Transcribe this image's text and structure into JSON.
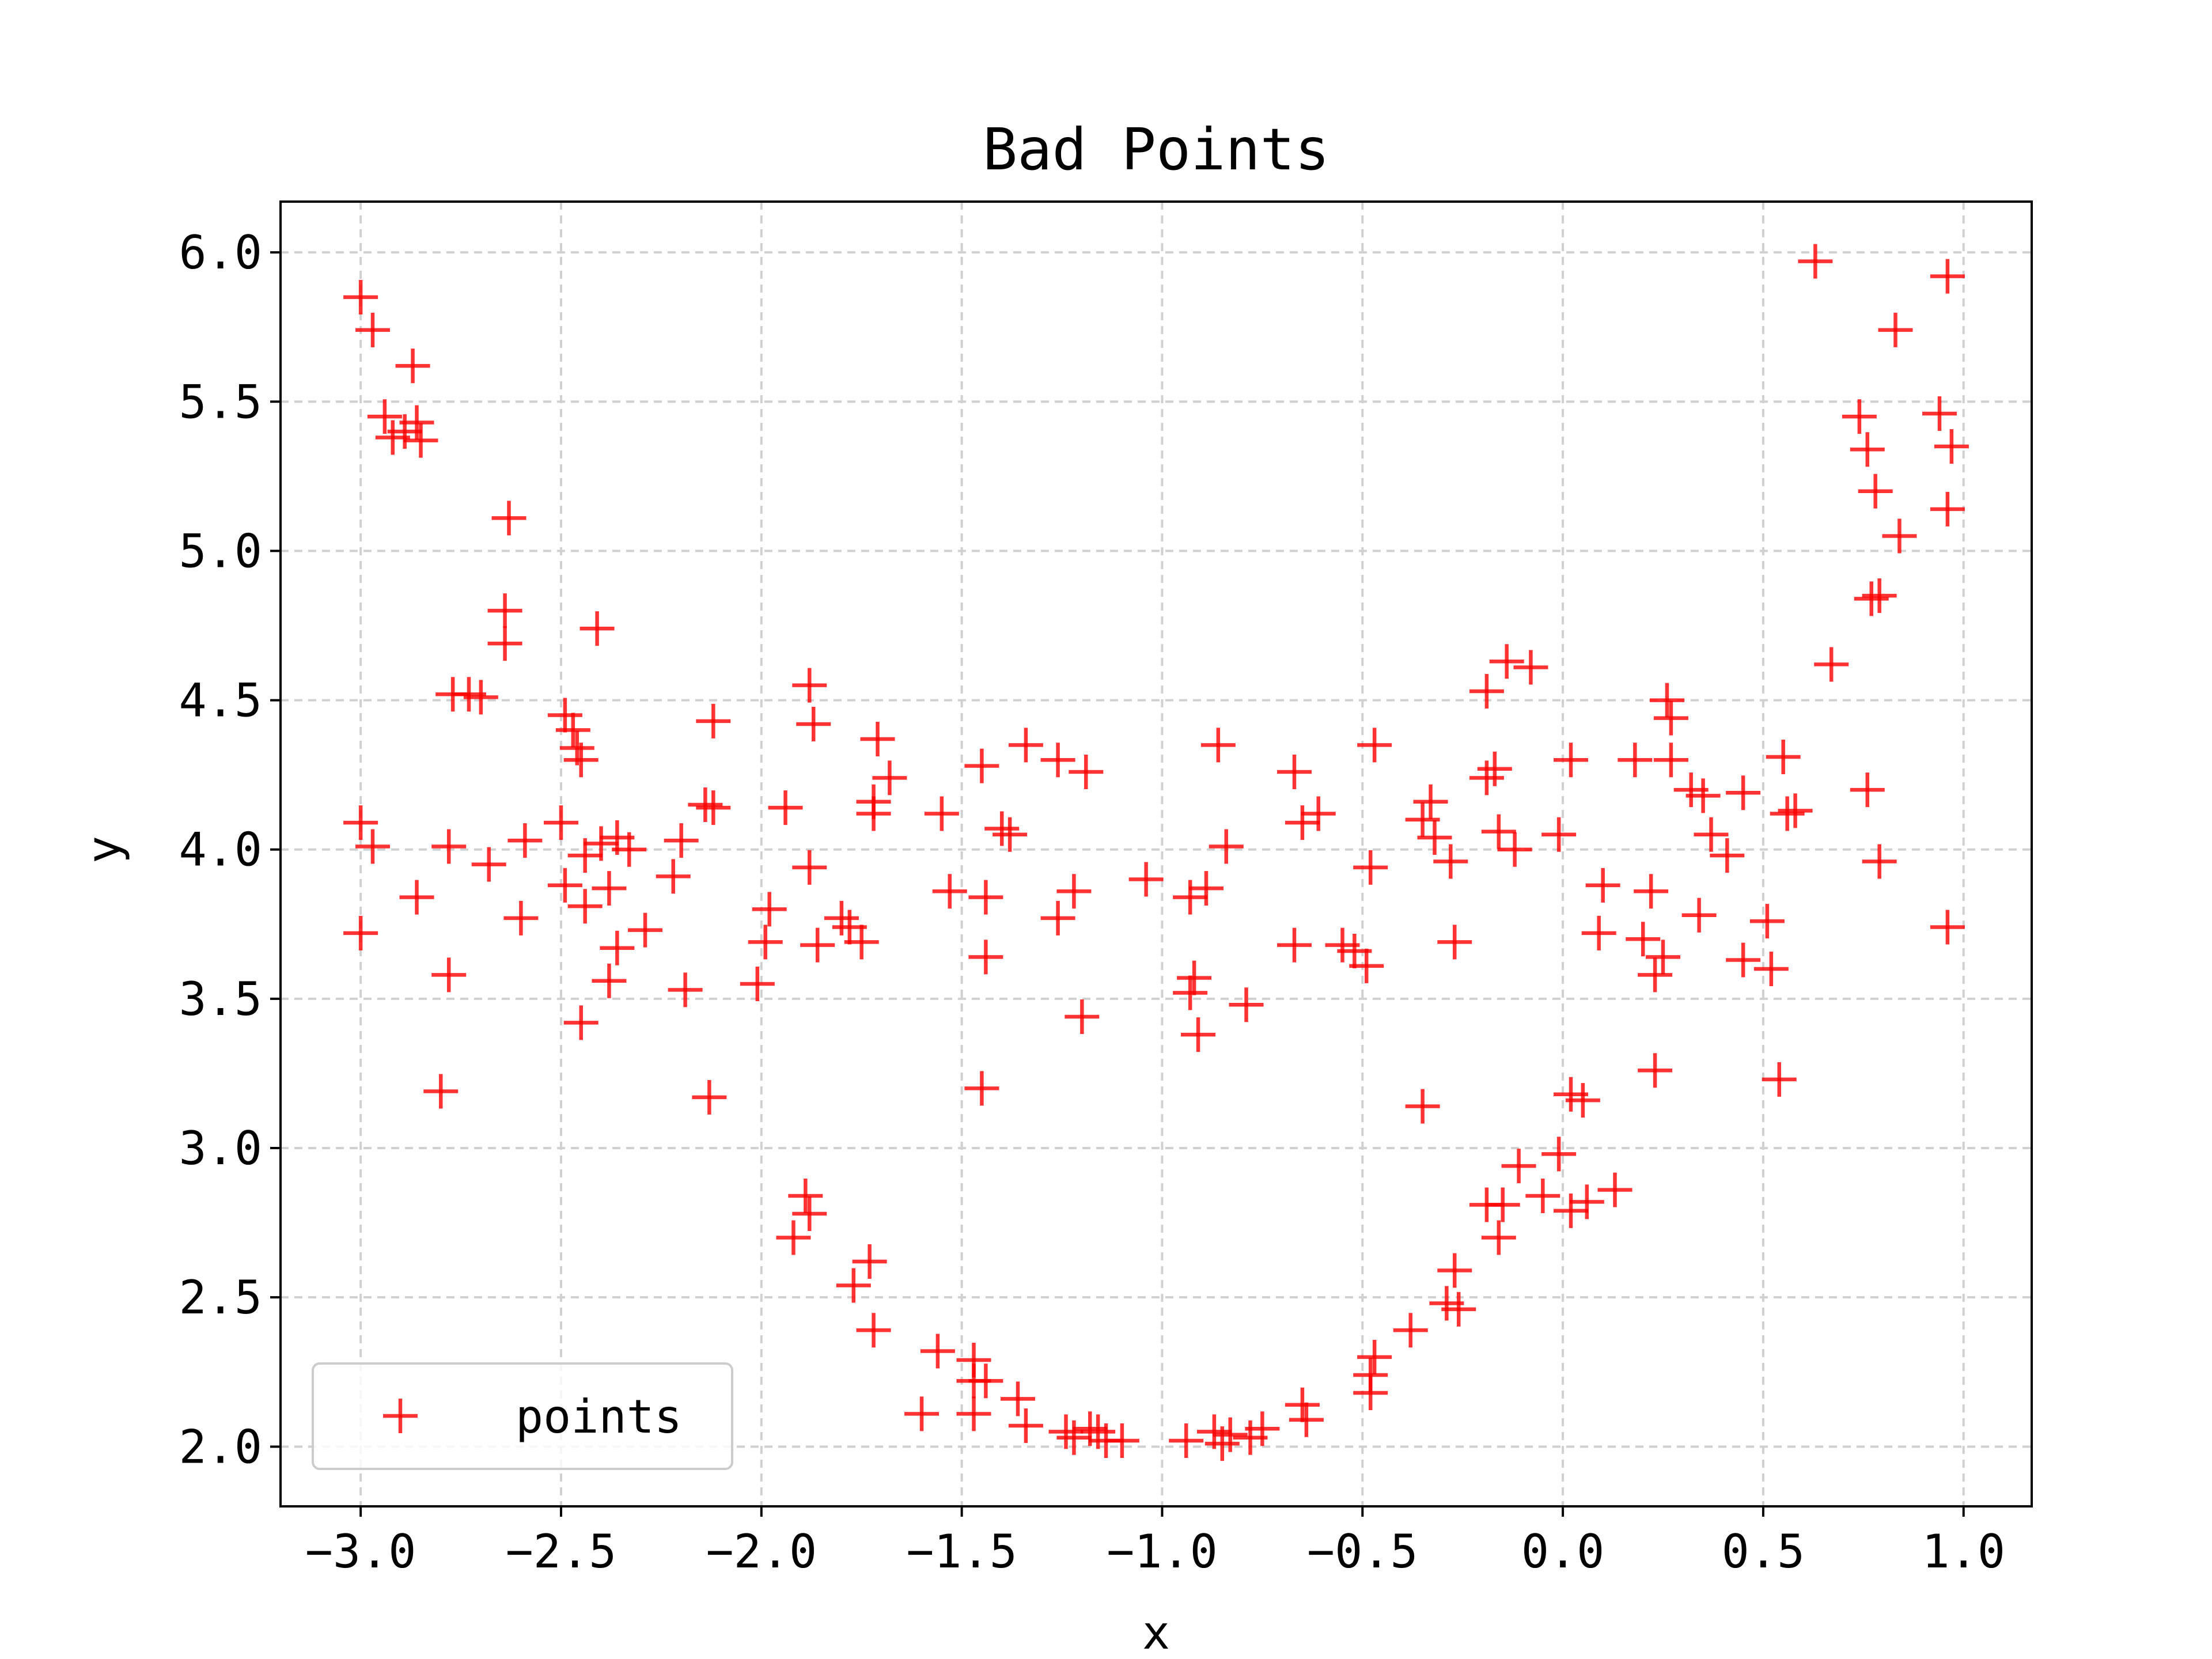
{
  "chart_data": {
    "type": "scatter",
    "title": "Bad Points",
    "xlabel": "x",
    "ylabel": "y",
    "xlim": [
      -3.2,
      1.17
    ],
    "ylim": [
      1.8,
      6.17
    ],
    "xticks": [
      -3.0,
      -2.5,
      -2.0,
      -1.5,
      -1.0,
      -0.5,
      0.0,
      0.5,
      1.0
    ],
    "yticks": [
      2.0,
      2.5,
      3.0,
      3.5,
      4.0,
      4.5,
      5.0,
      5.5,
      6.0
    ],
    "xtick_labels": [
      "−3.0",
      "−2.5",
      "−2.0",
      "−1.5",
      "−1.0",
      "−0.5",
      "0.0",
      "0.5",
      "1.0"
    ],
    "ytick_labels": [
      "2.0",
      "2.5",
      "3.0",
      "3.5",
      "4.0",
      "4.5",
      "5.0",
      "5.5",
      "6.0"
    ],
    "grid": true,
    "legend": {
      "placement": "lower-left",
      "entries": [
        "points"
      ]
    },
    "colors": {
      "marker": "#ff0000",
      "grid": "#d0d0d0",
      "axes": "#000000"
    },
    "marker": "+",
    "series": [
      {
        "name": "points",
        "points": [
          [
            -3.0,
            5.85
          ],
          [
            -2.97,
            5.74
          ],
          [
            -2.87,
            5.62
          ],
          [
            -2.94,
            5.45
          ],
          [
            -2.92,
            5.38
          ],
          [
            -2.89,
            5.4
          ],
          [
            -2.86,
            5.43
          ],
          [
            -2.85,
            5.37
          ],
          [
            -2.63,
            5.11
          ],
          [
            -2.64,
            4.8
          ],
          [
            -2.64,
            4.69
          ],
          [
            -2.41,
            4.74
          ],
          [
            -2.77,
            4.52
          ],
          [
            -2.73,
            4.52
          ],
          [
            -2.7,
            4.51
          ],
          [
            -2.49,
            4.45
          ],
          [
            -2.47,
            4.4
          ],
          [
            -2.46,
            4.34
          ],
          [
            -2.45,
            4.3
          ],
          [
            -2.12,
            4.43
          ],
          [
            -1.88,
            4.55
          ],
          [
            -1.87,
            4.42
          ],
          [
            -1.71,
            4.37
          ],
          [
            -1.68,
            4.24
          ],
          [
            -1.72,
            4.16
          ],
          [
            -1.72,
            4.12
          ],
          [
            -1.45,
            4.28
          ],
          [
            -1.34,
            4.35
          ],
          [
            -1.26,
            4.3
          ],
          [
            -1.19,
            4.26
          ],
          [
            -0.86,
            4.35
          ],
          [
            -0.67,
            4.26
          ],
          [
            -0.47,
            4.35
          ],
          [
            -0.19,
            4.53
          ],
          [
            -0.14,
            4.63
          ],
          [
            -0.08,
            4.61
          ],
          [
            -0.19,
            4.24
          ],
          [
            -0.17,
            4.27
          ],
          [
            0.02,
            4.3
          ],
          [
            0.18,
            4.3
          ],
          [
            0.26,
            4.5
          ],
          [
            0.27,
            4.44
          ],
          [
            0.27,
            4.3
          ],
          [
            0.32,
            4.2
          ],
          [
            0.35,
            4.18
          ],
          [
            0.45,
            4.19
          ],
          [
            0.55,
            4.31
          ],
          [
            0.63,
            5.97
          ],
          [
            0.96,
            5.92
          ],
          [
            0.83,
            5.74
          ],
          [
            0.74,
            5.45
          ],
          [
            0.76,
            5.34
          ],
          [
            0.94,
            5.46
          ],
          [
            0.97,
            5.35
          ],
          [
            0.78,
            5.2
          ],
          [
            0.96,
            5.14
          ],
          [
            0.84,
            5.05
          ],
          [
            0.77,
            4.84
          ],
          [
            0.79,
            4.85
          ],
          [
            0.67,
            4.62
          ],
          [
            0.76,
            4.2
          ],
          [
            0.79,
            3.96
          ],
          [
            0.96,
            3.74
          ],
          [
            -3.0,
            4.09
          ],
          [
            -2.97,
            4.01
          ],
          [
            -3.0,
            3.72
          ],
          [
            -2.86,
            3.84
          ],
          [
            -2.78,
            4.01
          ],
          [
            -2.68,
            3.95
          ],
          [
            -2.59,
            4.03
          ],
          [
            -2.6,
            3.77
          ],
          [
            -2.5,
            4.09
          ],
          [
            -2.49,
            3.88
          ],
          [
            -2.44,
            3.98
          ],
          [
            -2.4,
            4.02
          ],
          [
            -2.36,
            4.04
          ],
          [
            -2.33,
            4.0
          ],
          [
            -2.38,
            3.87
          ],
          [
            -2.44,
            3.81
          ],
          [
            -2.36,
            3.67
          ],
          [
            -2.38,
            3.56
          ],
          [
            -2.29,
            3.73
          ],
          [
            -2.22,
            3.91
          ],
          [
            -2.2,
            4.03
          ],
          [
            -2.14,
            4.15
          ],
          [
            -2.12,
            4.14
          ],
          [
            -2.78,
            3.58
          ],
          [
            -2.45,
            3.42
          ],
          [
            -2.19,
            3.53
          ],
          [
            -2.8,
            3.19
          ],
          [
            -2.13,
            3.17
          ],
          [
            -1.94,
            4.14
          ],
          [
            -1.88,
            3.94
          ],
          [
            -1.98,
            3.8
          ],
          [
            -1.99,
            3.69
          ],
          [
            -2.01,
            3.55
          ],
          [
            -1.86,
            3.68
          ],
          [
            -1.8,
            3.77
          ],
          [
            -1.78,
            3.74
          ],
          [
            -1.75,
            3.69
          ],
          [
            -1.55,
            4.12
          ],
          [
            -1.53,
            3.86
          ],
          [
            -1.44,
            3.84
          ],
          [
            -1.44,
            3.64
          ],
          [
            -1.4,
            4.07
          ],
          [
            -1.38,
            4.05
          ],
          [
            -1.26,
            3.77
          ],
          [
            -1.22,
            3.86
          ],
          [
            -1.2,
            3.44
          ],
          [
            -1.45,
            3.2
          ],
          [
            -1.04,
            3.9
          ],
          [
            -0.93,
            3.84
          ],
          [
            -0.89,
            3.87
          ],
          [
            -0.84,
            4.01
          ],
          [
            -0.92,
            3.57
          ],
          [
            -0.93,
            3.52
          ],
          [
            -0.91,
            3.38
          ],
          [
            -0.79,
            3.48
          ],
          [
            -0.65,
            4.09
          ],
          [
            -0.61,
            4.12
          ],
          [
            -0.67,
            3.68
          ],
          [
            -0.55,
            3.68
          ],
          [
            -0.52,
            3.66
          ],
          [
            -0.49,
            3.61
          ],
          [
            -0.48,
            3.94
          ],
          [
            -0.35,
            4.1
          ],
          [
            -0.33,
            4.16
          ],
          [
            -0.32,
            4.04
          ],
          [
            -0.28,
            3.96
          ],
          [
            -0.16,
            4.06
          ],
          [
            -0.12,
            4.0
          ],
          [
            -0.27,
            3.69
          ],
          [
            -0.35,
            3.14
          ],
          [
            -0.01,
            4.05
          ],
          [
            0.1,
            3.88
          ],
          [
            0.09,
            3.72
          ],
          [
            0.2,
            3.7
          ],
          [
            0.22,
            3.86
          ],
          [
            0.23,
            3.58
          ],
          [
            0.25,
            3.64
          ],
          [
            0.34,
            3.78
          ],
          [
            0.37,
            4.05
          ],
          [
            0.41,
            3.98
          ],
          [
            0.45,
            3.63
          ],
          [
            0.51,
            3.76
          ],
          [
            0.52,
            3.6
          ],
          [
            0.56,
            4.12
          ],
          [
            0.58,
            4.13
          ],
          [
            0.23,
            3.26
          ],
          [
            0.54,
            3.23
          ],
          [
            -1.92,
            2.7
          ],
          [
            -1.89,
            2.84
          ],
          [
            -1.88,
            2.78
          ],
          [
            -1.73,
            2.62
          ],
          [
            -1.77,
            2.54
          ],
          [
            -1.72,
            2.39
          ],
          [
            -1.56,
            2.32
          ],
          [
            -1.47,
            2.29
          ],
          [
            -1.47,
            2.22
          ],
          [
            -1.44,
            2.22
          ],
          [
            -1.47,
            2.11
          ],
          [
            -1.6,
            2.11
          ],
          [
            -1.36,
            2.16
          ],
          [
            -1.34,
            2.07
          ],
          [
            -1.24,
            2.05
          ],
          [
            -1.22,
            2.03
          ],
          [
            -1.18,
            2.06
          ],
          [
            -1.14,
            2.02
          ],
          [
            -1.16,
            2.05
          ],
          [
            -1.1,
            2.02
          ],
          [
            -0.94,
            2.02
          ],
          [
            -0.87,
            2.05
          ],
          [
            -0.85,
            2.01
          ],
          [
            -0.83,
            2.04
          ],
          [
            -0.78,
            2.03
          ],
          [
            -0.75,
            2.06
          ],
          [
            -0.65,
            2.14
          ],
          [
            -0.64,
            2.09
          ],
          [
            -0.47,
            2.3
          ],
          [
            -0.48,
            2.24
          ],
          [
            -0.48,
            2.18
          ],
          [
            -0.38,
            2.39
          ],
          [
            -0.27,
            2.59
          ],
          [
            -0.29,
            2.48
          ],
          [
            -0.26,
            2.46
          ],
          [
            -0.19,
            2.81
          ],
          [
            -0.16,
            2.7
          ],
          [
            -0.15,
            2.81
          ],
          [
            -0.11,
            2.94
          ],
          [
            -0.05,
            2.84
          ],
          [
            -0.01,
            2.98
          ],
          [
            0.02,
            3.18
          ],
          [
            0.05,
            3.16
          ],
          [
            0.02,
            2.79
          ],
          [
            0.06,
            2.82
          ],
          [
            0.13,
            2.86
          ]
        ]
      }
    ]
  }
}
